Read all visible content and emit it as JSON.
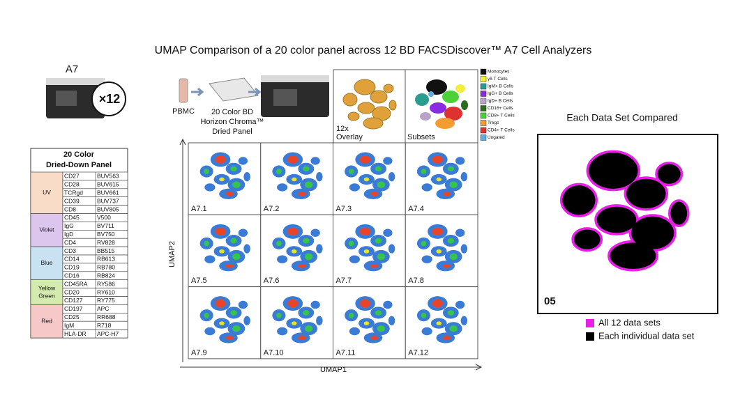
{
  "title": "UMAP Comparison of a 20 color panel across 12 BD FACSDiscover™ A7 Cell Analyzers",
  "instrument": {
    "name": "A7",
    "count": "×12"
  },
  "panel": {
    "title": [
      "20 Color",
      "Dried-Down Panel"
    ],
    "groups": [
      {
        "laser": "UV",
        "color": "#f8dcc8",
        "rows": [
          [
            "CD27",
            "BUV563"
          ],
          [
            "CD28",
            "BUV615"
          ],
          [
            "TCRgd",
            "BUV661"
          ],
          [
            "CD39",
            "BUV737"
          ],
          [
            "CD8",
            "BUV805"
          ]
        ]
      },
      {
        "laser": "Violet",
        "color": "#dcc6ee",
        "rows": [
          [
            "CD45",
            "V500"
          ],
          [
            "IgG",
            "BV711"
          ],
          [
            "IgD",
            "BV750"
          ],
          [
            "CD4",
            "RV828"
          ]
        ]
      },
      {
        "laser": "Blue",
        "color": "#c8e2f2",
        "rows": [
          [
            "CD3",
            "BB515"
          ],
          [
            "CD14",
            "RB613"
          ],
          [
            "CD19",
            "RB780"
          ],
          [
            "CD16",
            "RB824"
          ]
        ]
      },
      {
        "laser": [
          "Yellow",
          "Green"
        ],
        "color": "#d3ebae",
        "rows": [
          [
            "CD45RA",
            "RY586"
          ],
          [
            "CD20",
            "RY610"
          ],
          [
            "CD127",
            "RY775"
          ]
        ]
      },
      {
        "laser": "Red",
        "color": "#f7c8c8",
        "rows": [
          [
            "CD197",
            "APC"
          ],
          [
            "CD25",
            "RR688"
          ],
          [
            "IgM",
            "R718"
          ],
          [
            "HLA-DR",
            "APC-H7"
          ]
        ]
      }
    ]
  },
  "workflow": {
    "sample": "PBMC",
    "panel_label": [
      "20 Color BD",
      "Horizon Chroma™",
      "Dried Panel"
    ]
  },
  "overlay": {
    "label": [
      "12x",
      "Overlay"
    ]
  },
  "subsets": {
    "label": "Subsets",
    "legend": [
      {
        "name": "Monocytes",
        "color": "#111111"
      },
      {
        "name": "γδ T Cells",
        "color": "#f2ee3a"
      },
      {
        "name": "IgM+ B Cells",
        "color": "#2a9d8f"
      },
      {
        "name": "IgG+ B Cells",
        "color": "#8a2be2"
      },
      {
        "name": "IgD+ B Cells",
        "color": "#b9a3c9"
      },
      {
        "name": "CD16+ Cells",
        "color": "#2e6b1f"
      },
      {
        "name": "CD8+ T Cells",
        "color": "#4cd137"
      },
      {
        "name": "Tregs",
        "color": "#f39c32"
      },
      {
        "name": "CD4+ T Cells",
        "color": "#e03131"
      },
      {
        "name": "Ungated",
        "color": "#5dade2"
      }
    ]
  },
  "grid": {
    "x_label": "UMAP1",
    "y_label": "UMAP2",
    "panels": [
      "A7.1",
      "A7.2",
      "A7.3",
      "A7.4",
      "A7.5",
      "A7.6",
      "A7.7",
      "A7.8",
      "A7.9",
      "A7.10",
      "A7.11",
      "A7.12"
    ]
  },
  "comparison": {
    "title": "Each Data Set Compared",
    "panel_label": "05",
    "legend": [
      {
        "name": "All 12 data sets",
        "color": "#e61ee6"
      },
      {
        "name": "Each individual data set",
        "color": "#000000"
      }
    ]
  }
}
